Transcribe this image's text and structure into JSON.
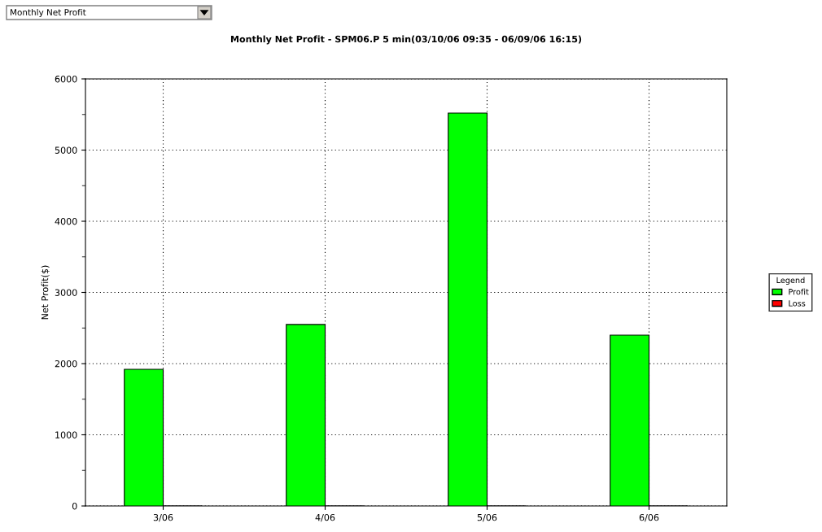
{
  "chart_data": {
    "type": "bar",
    "title": "Monthly Net Profit - SPM06.P 5 min(03/10/06 09:35 - 06/09/06 16:15)",
    "ylabel": "Net Profit($)",
    "legend_title": "Legend",
    "annotations": [
      "Monthly Net Profit"
    ],
    "categories": [
      "3/06",
      "4/06",
      "5/06",
      "6/06"
    ],
    "series": [
      {
        "name": "Profit",
        "color": "#00ff00",
        "values": [
          1920,
          2550,
          5520,
          2400
        ]
      },
      {
        "name": "Loss",
        "color": "#ff0000",
        "values": [
          0,
          0,
          0,
          0
        ]
      }
    ],
    "ylim": [
      0,
      6000
    ],
    "yticks": [
      0,
      1000,
      2000,
      3000,
      4000,
      5000,
      6000
    ],
    "grid": true,
    "legend": "right"
  }
}
